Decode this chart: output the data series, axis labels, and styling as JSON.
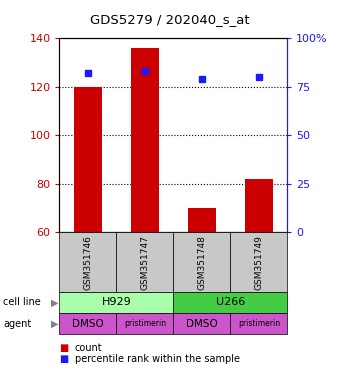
{
  "title": "GDS5279 / 202040_s_at",
  "samples": [
    "GSM351746",
    "GSM351747",
    "GSM351748",
    "GSM351749"
  ],
  "counts": [
    120,
    136,
    70,
    82
  ],
  "pct_values": [
    82,
    83,
    79,
    80
  ],
  "ylim_left": [
    60,
    140
  ],
  "ylim_right": [
    0,
    100
  ],
  "yticks_left": [
    60,
    80,
    100,
    120,
    140
  ],
  "yticks_right": [
    0,
    25,
    50,
    75,
    100
  ],
  "ytick_right_labels": [
    "0",
    "25",
    "50",
    "75",
    "100%"
  ],
  "bar_color": "#cc0000",
  "bar_width": 0.5,
  "marker_color": "#1a1aff",
  "marker_size": 5,
  "cell_line_groups": [
    {
      "name": "H929",
      "start": 0,
      "end": 2,
      "color": "#aaffaa"
    },
    {
      "name": "U266",
      "start": 2,
      "end": 4,
      "color": "#44cc44"
    }
  ],
  "agents": [
    "DMSO",
    "pristimerin",
    "DMSO",
    "pristimerin"
  ],
  "agent_color": "#cc55cc",
  "sample_box_color": "#c8c8c8",
  "left_axis_color": "#cc0000",
  "right_axis_color": "#1a1aff",
  "legend_red_label": "count",
  "legend_blue_label": "percentile rank within the sample",
  "legend_red_color": "#cc0000",
  "legend_blue_color": "#1a1aff",
  "row_label_cell_line": "cell line",
  "row_label_agent": "agent"
}
